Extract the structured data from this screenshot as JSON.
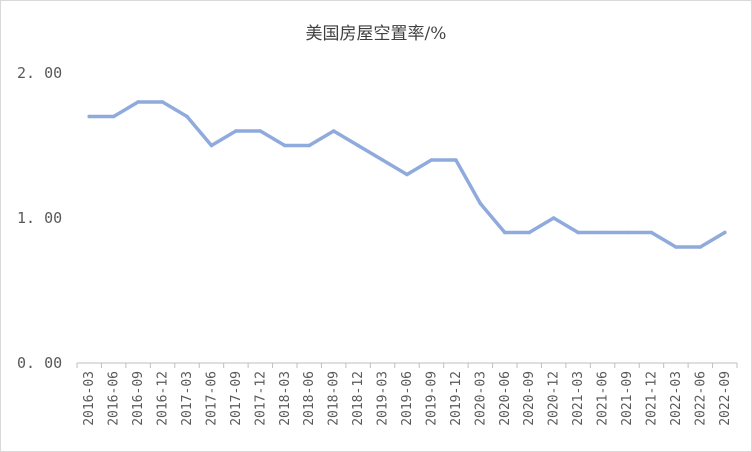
{
  "chart_data": {
    "type": "line",
    "title": "美国房屋空置率/%",
    "xlabel": "",
    "ylabel": "",
    "ylim": [
      0,
      2
    ],
    "yticks": [
      0,
      1,
      2
    ],
    "ytick_labels": [
      "0. 00",
      "1. 00",
      "2. 00"
    ],
    "grid": false,
    "legend": "none",
    "line_color": "#8faadc",
    "categories": [
      "2016-03",
      "2016-06",
      "2016-09",
      "2016-12",
      "2017-03",
      "2017-06",
      "2017-09",
      "2017-12",
      "2018-03",
      "2018-06",
      "2018-09",
      "2018-12",
      "2019-03",
      "2019-06",
      "2019-09",
      "2019-12",
      "2020-03",
      "2020-06",
      "2020-09",
      "2020-12",
      "2021-03",
      "2021-06",
      "2021-09",
      "2021-12",
      "2022-03",
      "2022-06",
      "2022-09"
    ],
    "series": [
      {
        "values": [
          1.7,
          1.7,
          1.8,
          1.8,
          1.7,
          1.5,
          1.6,
          1.6,
          1.5,
          1.5,
          1.6,
          1.5,
          1.4,
          1.3,
          1.4,
          1.4,
          1.1,
          0.9,
          0.9,
          1.0,
          0.9,
          0.9,
          0.9,
          0.9,
          0.8,
          0.8,
          0.9
        ]
      }
    ]
  }
}
